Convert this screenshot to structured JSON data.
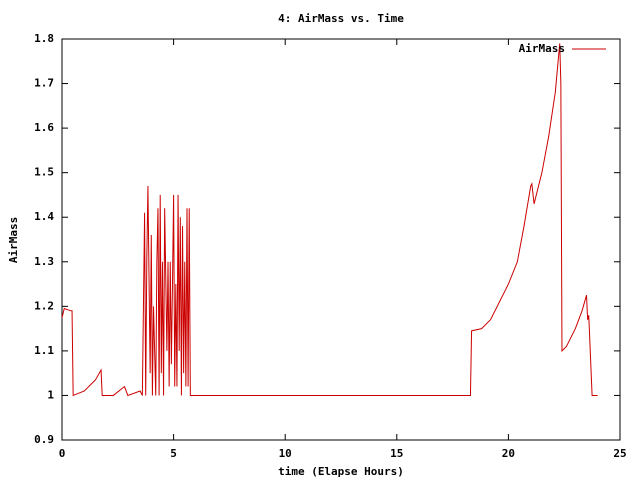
{
  "chart_data": {
    "type": "line",
    "title": "4: AirMass vs. Time",
    "xlabel": "time (Elapse Hours)",
    "ylabel": "AirMass",
    "x": [
      0,
      0.1,
      0.4,
      0.45,
      0.5,
      1.0,
      1.5,
      1.75,
      1.8,
      2.3,
      2.8,
      2.95,
      3.5,
      3.6,
      3.7,
      3.75,
      3.8,
      3.85,
      3.95,
      4.0,
      4.05,
      4.1,
      4.2,
      4.25,
      4.3,
      4.35,
      4.4,
      4.45,
      4.5,
      4.55,
      4.6,
      4.7,
      4.75,
      4.8,
      4.85,
      4.9,
      4.95,
      5.0,
      5.05,
      5.1,
      5.15,
      5.2,
      5.25,
      5.3,
      5.35,
      5.4,
      5.45,
      5.5,
      5.55,
      5.6,
      5.65,
      5.7,
      5.75,
      18.3,
      18.35,
      18.8,
      19.2,
      19.6,
      20.0,
      20.4,
      20.7,
      21.0,
      21.05,
      21.15,
      21.5,
      21.8,
      22.1,
      22.3,
      22.35,
      22.4,
      22.6,
      23.0,
      23.3,
      23.5,
      23.55,
      23.6,
      23.75,
      24.0
    ],
    "series": [
      {
        "name": "AirMass",
        "color": "#cc0000",
        "values": [
          1.174,
          1.195,
          1.19,
          1.19,
          1.0,
          1.01,
          1.035,
          1.057,
          1.0,
          1.0,
          1.02,
          1.0,
          1.01,
          1.0,
          1.41,
          1.0,
          1.31,
          1.47,
          1.05,
          1.36,
          1.0,
          1.2,
          1.0,
          1.3,
          1.42,
          1.0,
          1.45,
          1.05,
          1.3,
          1.0,
          1.42,
          1.1,
          1.3,
          1.02,
          1.3,
          1.07,
          1.25,
          1.45,
          1.02,
          1.25,
          1.02,
          1.45,
          1.1,
          1.4,
          1.0,
          1.38,
          1.05,
          1.3,
          1.02,
          1.42,
          1.02,
          1.42,
          1.0,
          1.0,
          1.145,
          1.15,
          1.17,
          1.21,
          1.25,
          1.3,
          1.38,
          1.47,
          1.475,
          1.43,
          1.5,
          1.58,
          1.68,
          1.79,
          1.7,
          1.1,
          1.11,
          1.15,
          1.19,
          1.225,
          1.17,
          1.18,
          1.0,
          1.0
        ]
      }
    ],
    "xlim": [
      0,
      25
    ],
    "xticks": [
      0,
      5,
      10,
      15,
      20,
      25
    ],
    "ylim": [
      0.9,
      1.8
    ],
    "yticks": [
      0.9,
      1,
      1.1,
      1.2,
      1.3,
      1.4,
      1.5,
      1.6,
      1.7,
      1.8
    ],
    "legend": "upper right"
  }
}
